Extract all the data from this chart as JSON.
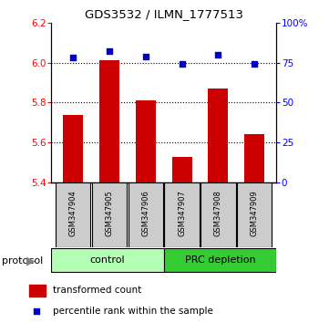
{
  "title": "GDS3532 / ILMN_1777513",
  "samples": [
    "GSM347904",
    "GSM347905",
    "GSM347906",
    "GSM347907",
    "GSM347908",
    "GSM347909"
  ],
  "transformed_counts": [
    5.74,
    6.01,
    5.81,
    5.53,
    5.87,
    5.64
  ],
  "percentile_ranks": [
    78,
    82,
    79,
    74,
    80,
    74
  ],
  "ylim_left": [
    5.4,
    6.2
  ],
  "ylim_right": [
    0,
    100
  ],
  "yticks_left": [
    5.4,
    5.6,
    5.8,
    6.0,
    6.2
  ],
  "yticks_right": [
    0,
    25,
    50,
    75,
    100
  ],
  "ytick_labels_right": [
    "0",
    "25",
    "50",
    "75",
    "100%"
  ],
  "grid_lines": [
    5.6,
    5.8,
    6.0
  ],
  "bar_color": "#cc0000",
  "dot_color": "#0000cc",
  "control_color": "#b3ffb3",
  "prc_color": "#33cc33",
  "sample_box_color": "#cccccc",
  "control_label": "control",
  "prc_label": "PRC depletion",
  "protocol_label": "protocol",
  "legend_bar_label": "transformed count",
  "legend_dot_label": "percentile rank within the sample",
  "bar_bottom": 5.4,
  "bar_width": 0.55
}
